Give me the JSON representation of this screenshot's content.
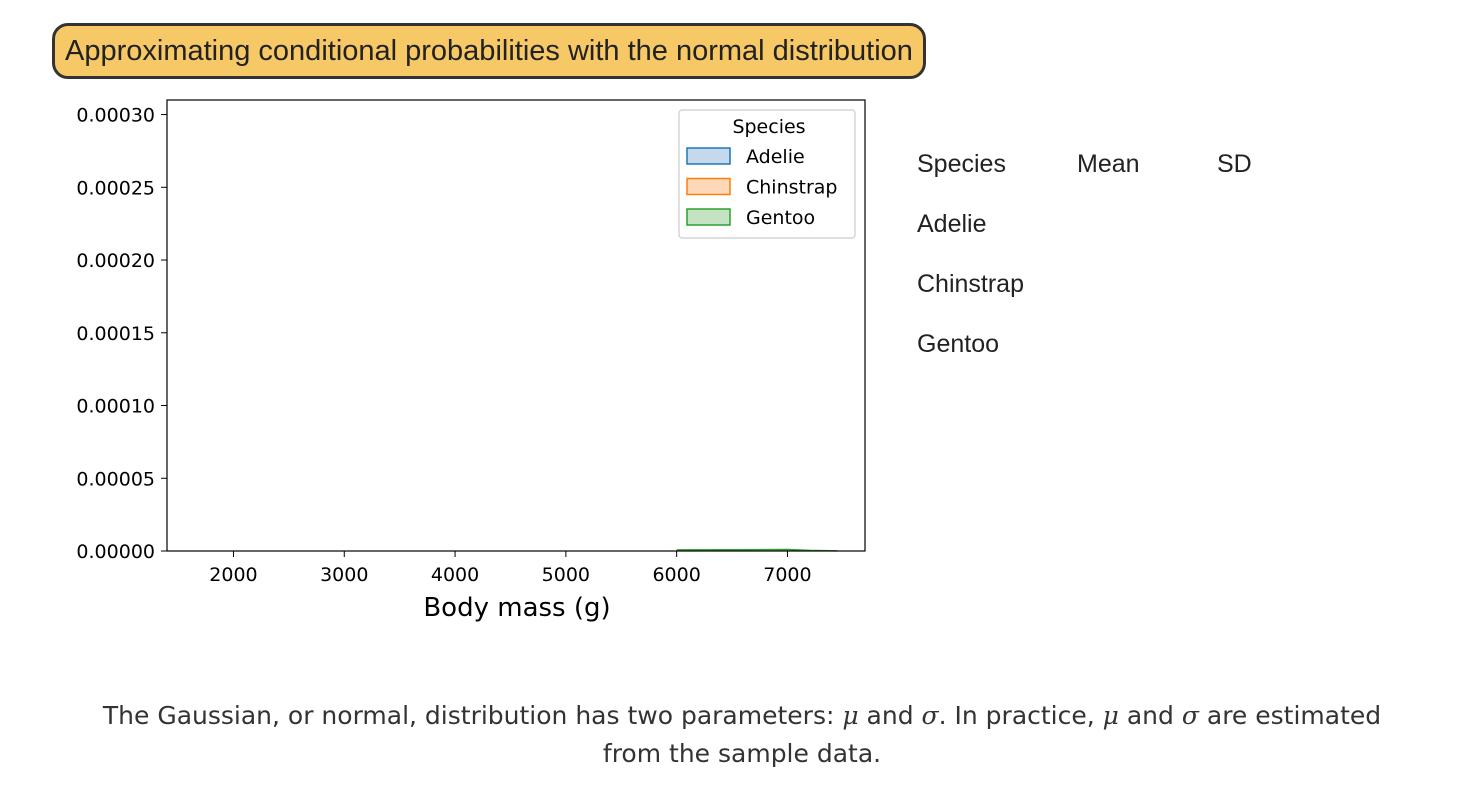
{
  "title": "Approximating conditional probabilities with the normal distribution",
  "chart_data": {
    "type": "area",
    "xlabel": "Body mass (g)",
    "ylabel": "",
    "xlim": [
      1400,
      7700
    ],
    "ylim": [
      0,
      0.00031
    ],
    "x_ticks": [
      2000,
      3000,
      4000,
      5000,
      6000,
      7000
    ],
    "x_tick_labels": [
      "2000",
      "3000",
      "4000",
      "5000",
      "6000",
      "7000"
    ],
    "y_ticks": [
      0,
      5e-05,
      0.0001,
      0.00015,
      0.0002,
      0.00025,
      0.0003
    ],
    "y_tick_labels": [
      "0.00000",
      "0.00005",
      "0.00010",
      "0.00015",
      "0.00020",
      "0.00025",
      "0.00030"
    ],
    "grid": false,
    "legend": {
      "title": "Species",
      "placement": "top-right"
    },
    "series": [
      {
        "name": "Adelie",
        "color": "#1f77b4",
        "fill": "#c6d9ec",
        "x": [],
        "y": []
      },
      {
        "name": "Chinstrap",
        "color": "#ff7f0e",
        "fill": "#fdd9b9",
        "x": [],
        "y": []
      },
      {
        "name": "Gentoo",
        "color": "#2ca02c",
        "fill": "#c3e3c3",
        "x": [
          6000,
          6500,
          7000,
          7200,
          7450
        ],
        "y": [
          8e-07,
          9e-07,
          1e-06,
          4e-07,
          1e-07
        ]
      }
    ]
  },
  "stats_table": {
    "headers": [
      "Species",
      "Mean",
      "SD"
    ],
    "rows": [
      {
        "species": "Adelie",
        "mean": "",
        "sd": ""
      },
      {
        "species": "Chinstrap",
        "mean": "",
        "sd": ""
      },
      {
        "species": "Gentoo",
        "mean": "",
        "sd": ""
      }
    ]
  },
  "caption": {
    "part1": "The Gaussian, or normal, distribution has two parameters: ",
    "mu": "μ",
    "and1": " and ",
    "sigma": "σ",
    "part2": ". In practice, ",
    "mu2": "μ",
    "and2": " and ",
    "sigma2": "σ",
    "part3": " are estimated",
    "line2": "from the sample data."
  }
}
